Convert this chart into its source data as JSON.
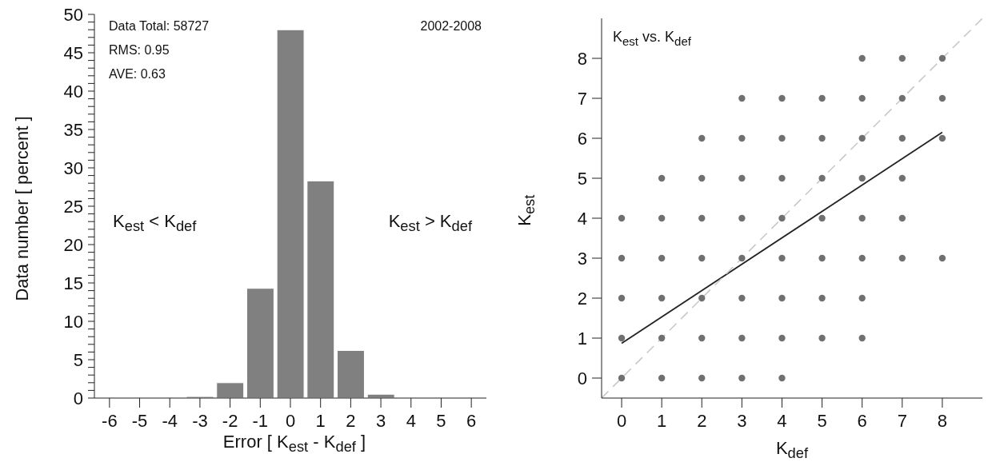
{
  "chart_data": [
    {
      "type": "histogram",
      "xlabel": "Error  [ K$_{est}$ - K$_{def}$ ]",
      "ylabel": "Data number  [ percent ]",
      "bins": [
        -3.5,
        -2.5,
        -1.5,
        -0.5,
        0.5,
        1.5,
        2.5,
        3.5
      ],
      "values": [
        0.2,
        2,
        14.3,
        48,
        28.3,
        6.2,
        0.5
      ],
      "color": "#808080",
      "xlim": [
        -6.5,
        6.5
      ],
      "xticks": [
        -6,
        -5,
        -4,
        -3,
        -2,
        -1,
        0,
        1,
        2,
        3,
        4,
        5,
        6
      ],
      "ylim": [
        0,
        50
      ],
      "yticks": [
        0,
        {
          "value": 1,
          "label": null
        },
        {
          "value": 2,
          "label": null
        },
        {
          "value": 3,
          "label": null
        },
        {
          "value": 4,
          "label": null
        },
        5,
        {
          "value": 6,
          "label": null
        },
        {
          "value": 7,
          "label": null
        },
        {
          "value": 8,
          "label": null
        },
        {
          "value": 9,
          "label": null
        },
        10,
        {
          "value": 11,
          "label": null
        },
        {
          "value": 12,
          "label": null
        },
        {
          "value": 13,
          "label": null
        },
        {
          "value": 14,
          "label": null
        },
        15,
        {
          "value": 16,
          "label": null
        },
        {
          "value": 17,
          "label": null
        },
        {
          "value": 18,
          "label": null
        },
        {
          "value": 19,
          "label": null
        },
        20,
        {
          "value": 21,
          "label": null
        },
        {
          "value": 22,
          "label": null
        },
        {
          "value": 23,
          "label": null
        },
        {
          "value": 24,
          "label": null
        },
        25,
        {
          "value": 26,
          "label": null
        },
        {
          "value": 27,
          "label": null
        },
        {
          "value": 28,
          "label": null
        },
        {
          "value": 29,
          "label": null
        },
        30,
        {
          "value": 31,
          "label": null
        },
        {
          "value": 32,
          "label": null
        },
        {
          "value": 33,
          "label": null
        },
        {
          "value": 34,
          "label": null
        },
        35,
        {
          "value": 36,
          "label": null
        },
        {
          "value": 37,
          "label": null
        },
        {
          "value": 38,
          "label": null
        },
        {
          "value": 39,
          "label": null
        },
        40,
        {
          "value": 41,
          "label": null
        },
        {
          "value": 42,
          "label": null
        },
        {
          "value": 43,
          "label": null
        },
        {
          "value": 44,
          "label": null
        },
        45,
        {
          "value": 46,
          "label": null
        },
        {
          "value": 47,
          "label": null
        },
        {
          "value": 48,
          "label": null
        },
        {
          "value": 49,
          "label": null
        },
        50
      ],
      "annotations": [
        "Data Total: 58727",
        "RMS: 0.95",
        "AVE: 0.63",
        "2002-2008",
        "K$_{est}$ < K$_{def}$",
        "K$_{est}$ > K$_{def}$"
      ],
      "grid": false,
      "legend": false
    },
    {
      "type": "scatter",
      "title": "K$_{est}$ vs. K$_{def}$",
      "xlabel": "K$_{def}$",
      "ylabel": "K$_{est}$",
      "xlim": [
        -0.5,
        9
      ],
      "xticks": [
        0,
        1,
        2,
        3,
        4,
        5,
        6,
        7,
        8
      ],
      "ylim": [
        -0.5,
        9
      ],
      "yticks": [
        0,
        1,
        2,
        3,
        4,
        5,
        6,
        7,
        8
      ],
      "series": [
        {
          "type": "scatter",
          "color": "#707070",
          "marker": "circle",
          "x": [
            6,
            7,
            8,
            3,
            4,
            5,
            6,
            7,
            8,
            2,
            3,
            4,
            5,
            6,
            7,
            8,
            1,
            2,
            3,
            4,
            5,
            6,
            7,
            0,
            1,
            2,
            3,
            4,
            5,
            6,
            7,
            0,
            1,
            2,
            3,
            4,
            5,
            6,
            7,
            8,
            0,
            1,
            2,
            3,
            4,
            5,
            6,
            0,
            1,
            2,
            3,
            4,
            5,
            6,
            0,
            1,
            2,
            3,
            4
          ],
          "values": [
            8,
            8,
            8,
            7,
            7,
            7,
            7,
            7,
            7,
            6,
            6,
            6,
            6,
            6,
            6,
            6,
            5,
            5,
            5,
            5,
            5,
            5,
            5,
            4,
            4,
            4,
            4,
            4,
            4,
            4,
            4,
            3,
            3,
            3,
            3,
            3,
            3,
            3,
            3,
            3,
            2,
            2,
            2,
            2,
            2,
            2,
            2,
            1,
            1,
            1,
            1,
            1,
            1,
            1,
            0,
            0,
            0,
            0,
            0
          ]
        },
        {
          "type": "line",
          "color": "#222222",
          "line_style": "solid",
          "x": [
            0,
            8
          ],
          "values": [
            0.87,
            6.15
          ]
        },
        {
          "type": "line",
          "color": "#c8c8c8",
          "line_style": "dashed",
          "x": [
            -0.5,
            9
          ],
          "values": [
            -0.5,
            9
          ]
        }
      ],
      "grid": false,
      "legend": false
    }
  ]
}
